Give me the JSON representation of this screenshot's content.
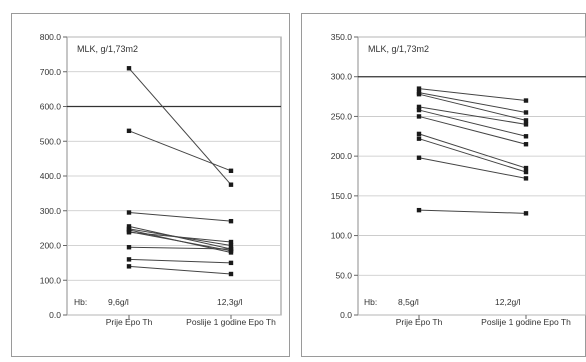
{
  "chart_data": [
    {
      "type": "line",
      "title": "",
      "annotation": "MLK, g/1,73m2",
      "ylim": [
        0,
        800
      ],
      "yticks": [
        "0.0",
        "100.0",
        "200.0",
        "300.0",
        "400.0",
        "500.0",
        "600.0",
        "700.0",
        "800.0"
      ],
      "ytick_values": [
        0,
        100,
        200,
        300,
        400,
        500,
        600,
        700,
        800
      ],
      "categories": [
        "Prije Epo Th",
        "Poslije 1 godine Epo Th"
      ],
      "hb_label": "Hb:",
      "hb_values": [
        "9,6g/l",
        "12,3g/l"
      ],
      "highlight_gridline": 600,
      "series": [
        {
          "values": [
            710,
            375
          ]
        },
        {
          "values": [
            530,
            415
          ]
        },
        {
          "values": [
            295,
            270
          ]
        },
        {
          "values": [
            255,
            190
          ]
        },
        {
          "values": [
            248,
            200
          ]
        },
        {
          "values": [
            245,
            180
          ]
        },
        {
          "values": [
            240,
            185
          ]
        },
        {
          "values": [
            238,
            210
          ]
        },
        {
          "values": [
            195,
            190
          ]
        },
        {
          "values": [
            160,
            150
          ]
        },
        {
          "values": [
            140,
            118
          ]
        }
      ]
    },
    {
      "type": "line",
      "title": "",
      "annotation": "MLK, g/1,73m2",
      "ylim": [
        0,
        350
      ],
      "yticks": [
        "0.0",
        "50.0",
        "100.0",
        "150.0",
        "200.0",
        "250.0",
        "300.0",
        "350.0"
      ],
      "ytick_values": [
        0,
        50,
        100,
        150,
        200,
        250,
        300,
        350
      ],
      "categories": [
        "Prije Epo Th",
        "Poslije 1 godine Epo Th"
      ],
      "hb_label": "Hb:",
      "hb_values": [
        "8,5g/l",
        "12,2g/l"
      ],
      "highlight_gridline": 300,
      "series": [
        {
          "values": [
            285,
            270
          ]
        },
        {
          "values": [
            280,
            255
          ]
        },
        {
          "values": [
            278,
            245
          ]
        },
        {
          "values": [
            262,
            240
          ]
        },
        {
          "values": [
            258,
            225
          ]
        },
        {
          "values": [
            250,
            215
          ]
        },
        {
          "values": [
            228,
            185
          ]
        },
        {
          "values": [
            222,
            180
          ]
        },
        {
          "values": [
            198,
            172
          ]
        },
        {
          "values": [
            132,
            128
          ]
        }
      ]
    }
  ]
}
